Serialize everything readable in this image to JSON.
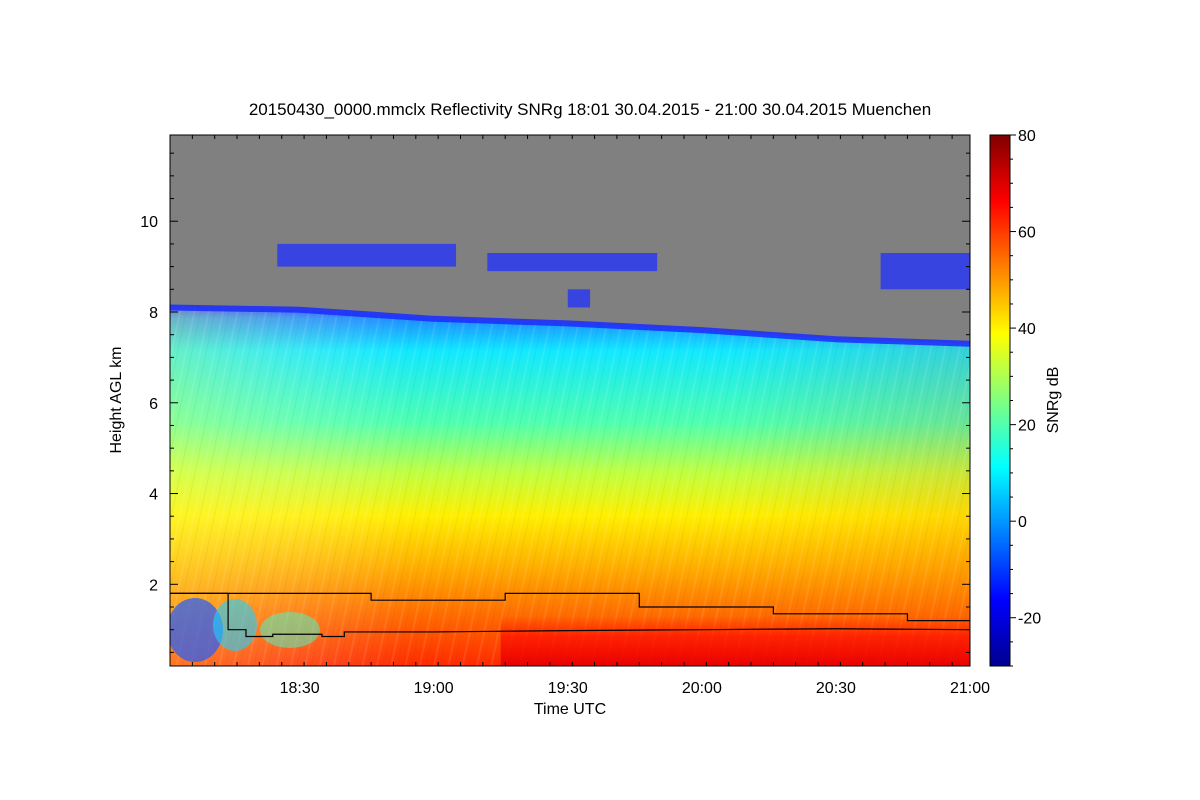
{
  "chart_data": {
    "type": "heatmap",
    "title": "20150430_0000.mmclx Reflectivity SNRg   18:01 30.04.2015 - 21:00 30.04.2015 Muenchen",
    "xlabel": "Time UTC",
    "ylabel": "Height AGL km",
    "colorbar_label": "SNRg dB",
    "x_range": [
      "18:01",
      "21:00"
    ],
    "y_range": [
      0.2,
      11.9
    ],
    "color_range": [
      -30,
      80
    ],
    "x_ticks": [
      "18:30",
      "19:00",
      "19:30",
      "20:00",
      "20:30",
      "21:00"
    ],
    "y_ticks": [
      "2",
      "4",
      "6",
      "8",
      "10"
    ],
    "color_ticks": [
      "-20",
      "0",
      "20",
      "40",
      "60",
      "80"
    ],
    "colormap": [
      "#00008f",
      "#0000ff",
      "#0080ff",
      "#00ffff",
      "#80ff80",
      "#ffff00",
      "#ff8000",
      "#ff0000",
      "#800000"
    ],
    "no_signal_color": "#808080",
    "signal_top_height": [
      {
        "time": "18:01",
        "height": 8.1
      },
      {
        "time": "18:30",
        "height": 8.05
      },
      {
        "time": "19:00",
        "height": 7.85
      },
      {
        "time": "19:30",
        "height": 7.75
      },
      {
        "time": "20:00",
        "height": 7.6
      },
      {
        "time": "20:30",
        "height": 7.4
      },
      {
        "time": "21:00",
        "height": 7.3
      }
    ],
    "upper_cloud_layers": [
      {
        "start": "18:25",
        "end": "19:05",
        "base": 9.0,
        "top": 9.5
      },
      {
        "start": "19:12",
        "end": "19:50",
        "base": 8.9,
        "top": 9.3
      },
      {
        "start": "19:30",
        "end": "19:35",
        "base": 8.1,
        "top": 8.5
      },
      {
        "start": "20:40",
        "end": "21:00",
        "base": 8.5,
        "top": 9.3
      }
    ],
    "series": [
      {
        "x": [
          "18:01",
          "18:14",
          "18:14",
          "18:46",
          "18:46",
          "19:16",
          "19:16",
          "19:46",
          "19:46",
          "20:16",
          "20:16",
          "20:46",
          "20:46",
          "21:00"
        ],
        "y": [
          1.8,
          1.8,
          1.8,
          1.8,
          1.65,
          1.65,
          1.8,
          1.8,
          1.5,
          1.5,
          1.35,
          1.35,
          1.2,
          1.2
        ]
      },
      {
        "x": [
          "18:01",
          "18:14",
          "18:14",
          "18:18",
          "18:18",
          "18:24",
          "18:24",
          "18:35",
          "18:35",
          "18:40",
          "18:40",
          "19:00",
          "19:30",
          "20:00",
          "20:30",
          "21:00"
        ],
        "y": [
          1.8,
          1.8,
          1.0,
          1.0,
          0.85,
          0.85,
          0.9,
          0.9,
          0.85,
          0.85,
          0.95,
          0.95,
          0.98,
          1.0,
          1.02,
          1.0
        ]
      }
    ]
  }
}
